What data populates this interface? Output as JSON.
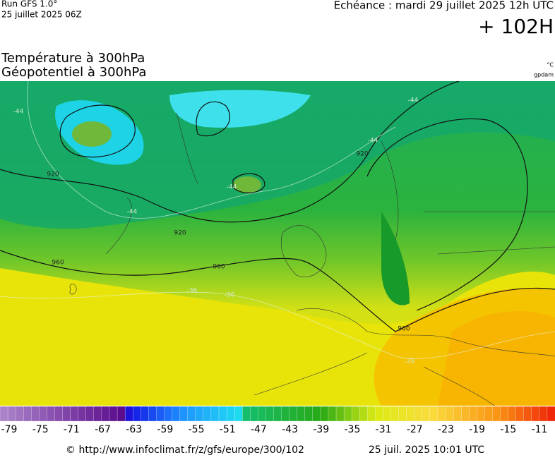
{
  "header": {
    "run": "Run GFS 1.0°",
    "date": "25 juillet 2025 06Z",
    "valid": "Echéance : mardi 29 juillet 2025 12h UTC",
    "lead": "+ 102H"
  },
  "titles": [
    "Température à 300hPa",
    "Géopotentiel à 300hPa"
  ],
  "units": [
    "°C",
    "gpdam"
  ],
  "map": {
    "contour_labels": [
      "920",
      "920",
      "920",
      "960",
      "960",
      "960",
      "-44",
      "-44",
      "-44",
      "-44",
      "-44",
      "-36",
      "-36",
      "-28"
    ]
  },
  "colorbar": {
    "labels": [
      "-79",
      "-75",
      "-71",
      "-67",
      "-63",
      "-59",
      "-55",
      "-51",
      "-47",
      "-43",
      "-39",
      "-35",
      "-31",
      "-27",
      "-23",
      "-19",
      "-15",
      "-11"
    ]
  },
  "footer": {
    "url": "© http://www.infoclimat.fr/z/gfs/europe/300/102",
    "timestamp": "25 juil. 2025 10:01 UTC"
  }
}
